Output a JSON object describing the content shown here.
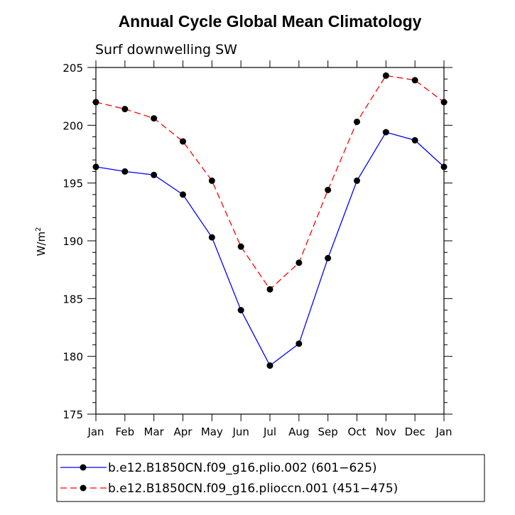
{
  "chart_data": {
    "type": "line",
    "title": "Annual Cycle Global Mean Climatology",
    "subtitle": "Surf downwelling SW",
    "xlabel": "",
    "ylabel": "W/m",
    "ylabel_superscript": "2",
    "categories": [
      "Jan",
      "Feb",
      "Mar",
      "Apr",
      "May",
      "Jun",
      "Jul",
      "Aug",
      "Sep",
      "Oct",
      "Nov",
      "Dec",
      "Jan"
    ],
    "ylim": [
      175,
      205
    ],
    "yticks": [
      "175",
      "180",
      "185",
      "190",
      "195",
      "200",
      "205"
    ],
    "ytick_values": [
      175,
      180,
      185,
      190,
      195,
      200,
      205
    ],
    "legend_position": "bottom",
    "series": [
      {
        "name": "b.e12.B1850CN.f09_g16.plio.002 (601−625)",
        "color": "#0000ff",
        "dash": "solid",
        "values": [
          196.4,
          196.0,
          195.7,
          194.0,
          190.3,
          184.0,
          179.2,
          181.1,
          188.5,
          195.2,
          199.4,
          198.7,
          196.4
        ]
      },
      {
        "name": "b.e12.B1850CN.f09_g16.plioccn.001 (451−475)",
        "color": "#ff0000",
        "dash": "dashed",
        "values": [
          202.0,
          201.4,
          200.6,
          198.6,
          195.2,
          189.5,
          185.8,
          188.1,
          194.4,
          200.3,
          204.3,
          203.9,
          202.0
        ]
      }
    ]
  }
}
